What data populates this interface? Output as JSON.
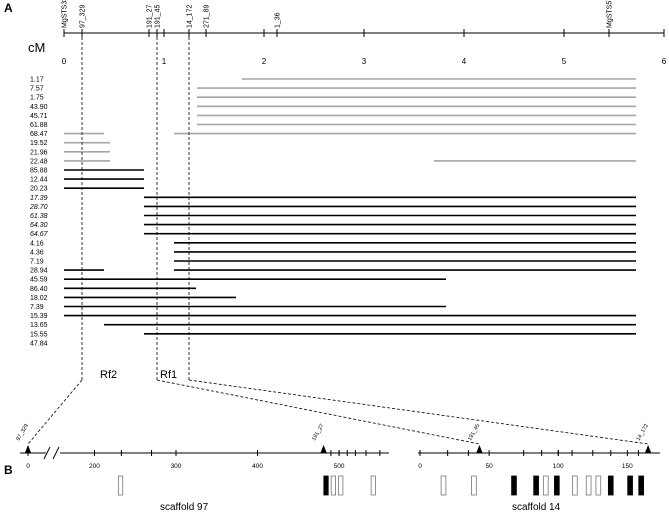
{
  "panel_a_label": "A",
  "panel_b_label": "B",
  "cm_title": "cM",
  "cm_scale": {
    "min": 0,
    "max": 6,
    "ticks": [
      "0",
      "1",
      "2",
      "3",
      "4",
      "5",
      "6"
    ]
  },
  "markers": [
    {
      "name": "MgSTS331",
      "cm": 0.0
    },
    {
      "name": "97_329",
      "cm": 0.18
    },
    {
      "name": "191_27",
      "cm": 0.85
    },
    {
      "name": "191_45",
      "cm": 0.93
    },
    {
      "name": "14_172",
      "cm": 1.25
    },
    {
      "name": "271_89",
      "cm": 1.42
    },
    {
      "name": "1_36",
      "cm": 2.13
    },
    {
      "name": "MgSTS574",
      "cm": 5.45
    }
  ],
  "recombinants": [
    {
      "label": "1.17",
      "italic": false,
      "segments": [
        {
          "from": 1.78,
          "to": 5.72,
          "gray": true
        }
      ]
    },
    {
      "label": "7.57",
      "italic": false,
      "segments": [
        {
          "from": 1.33,
          "to": 5.72,
          "gray": true
        }
      ]
    },
    {
      "label": "1.75",
      "italic": false,
      "segments": [
        {
          "from": 1.33,
          "to": 5.72,
          "gray": true
        }
      ]
    },
    {
      "label": "43.90",
      "italic": false,
      "segments": [
        {
          "from": 1.33,
          "to": 5.72,
          "gray": true
        }
      ]
    },
    {
      "label": "45.71",
      "italic": false,
      "segments": [
        {
          "from": 1.33,
          "to": 5.72,
          "gray": true
        }
      ]
    },
    {
      "label": "61.88",
      "italic": false,
      "segments": [
        {
          "from": 1.33,
          "to": 5.72,
          "gray": true
        }
      ]
    },
    {
      "label": "68.47",
      "italic": false,
      "segments": [
        {
          "from": 0.0,
          "to": 0.4,
          "gray": true
        },
        {
          "from": 1.1,
          "to": 5.72,
          "gray": true
        }
      ]
    },
    {
      "label": "19.52",
      "italic": false,
      "segments": [
        {
          "from": 0.0,
          "to": 0.46,
          "gray": true
        }
      ]
    },
    {
      "label": "21.96",
      "italic": false,
      "segments": [
        {
          "from": 0.0,
          "to": 0.46,
          "gray": true
        }
      ]
    },
    {
      "label": "22.48",
      "italic": false,
      "segments": [
        {
          "from": 0.0,
          "to": 0.46,
          "gray": true
        },
        {
          "from": 3.7,
          "to": 5.72,
          "gray": true
        }
      ]
    },
    {
      "label": "85.88",
      "italic": false,
      "segments": [
        {
          "from": 0.0,
          "to": 0.8,
          "gray": false
        }
      ]
    },
    {
      "label": "12.44",
      "italic": false,
      "segments": [
        {
          "from": 0.0,
          "to": 0.8,
          "gray": false
        }
      ]
    },
    {
      "label": "20.23",
      "italic": false,
      "segments": [
        {
          "from": 0.0,
          "to": 0.8,
          "gray": false
        }
      ]
    },
    {
      "label": "17.39",
      "italic": true,
      "segments": [
        {
          "from": 0.8,
          "to": 5.72,
          "gray": false
        }
      ]
    },
    {
      "label": "28.70",
      "italic": true,
      "segments": [
        {
          "from": 0.8,
          "to": 5.72,
          "gray": false
        }
      ]
    },
    {
      "label": "61.38",
      "italic": true,
      "segments": [
        {
          "from": 0.8,
          "to": 5.72,
          "gray": false
        }
      ]
    },
    {
      "label": "64.30",
      "italic": true,
      "segments": [
        {
          "from": 0.8,
          "to": 5.72,
          "gray": false
        }
      ]
    },
    {
      "label": "64.67",
      "italic": true,
      "segments": [
        {
          "from": 0.8,
          "to": 5.72,
          "gray": false
        }
      ]
    },
    {
      "label": "4.16",
      "italic": false,
      "segments": [
        {
          "from": 1.1,
          "to": 5.72,
          "gray": false
        }
      ]
    },
    {
      "label": "4.36",
      "italic": false,
      "segments": [
        {
          "from": 1.1,
          "to": 5.72,
          "gray": false
        }
      ]
    },
    {
      "label": "7.19",
      "italic": false,
      "segments": [
        {
          "from": 1.1,
          "to": 5.72,
          "gray": false
        }
      ]
    },
    {
      "label": "28.94",
      "italic": false,
      "segments": [
        {
          "from": 0.0,
          "to": 0.4,
          "gray": false
        },
        {
          "from": 1.1,
          "to": 5.72,
          "gray": false
        }
      ]
    },
    {
      "label": "45.59",
      "italic": false,
      "segments": [
        {
          "from": 0.0,
          "to": 1.1,
          "gray": false
        },
        {
          "from": 1.1,
          "to": 3.82,
          "gray": false
        }
      ]
    },
    {
      "label": "86.40",
      "italic": false,
      "segments": [
        {
          "from": 0.0,
          "to": 1.32,
          "gray": false
        }
      ]
    },
    {
      "label": "18.02",
      "italic": false,
      "segments": [
        {
          "from": 0.0,
          "to": 1.72,
          "gray": false
        }
      ]
    },
    {
      "label": "7.39",
      "italic": false,
      "segments": [
        {
          "from": 0.0,
          "to": 3.82,
          "gray": false
        }
      ]
    },
    {
      "label": "15.39",
      "italic": false,
      "segments": [
        {
          "from": 0.0,
          "to": 5.72,
          "gray": false
        }
      ]
    },
    {
      "label": "13.65",
      "italic": false,
      "segments": [
        {
          "from": 0.4,
          "to": 5.72,
          "gray": false
        }
      ]
    },
    {
      "label": "15.55",
      "italic": false,
      "segments": [
        {
          "from": 0.8,
          "to": 5.72,
          "gray": false
        }
      ]
    },
    {
      "label": "47.84",
      "italic": false,
      "segments": []
    }
  ],
  "rf_labels": [
    {
      "text": "Rf2",
      "cm": 0.48
    },
    {
      "text": "Rf1",
      "cm": 1.08
    }
  ],
  "scaffold97": {
    "name": "scaffold 97",
    "tick_labels": [
      {
        "text": "0",
        "kb": 0
      },
      {
        "text": "200",
        "kb": 200
      },
      {
        "text": "300",
        "kb": 300
      },
      {
        "text": "400",
        "kb": 400
      },
      {
        "text": "500",
        "kb": 500
      }
    ],
    "markers": [
      {
        "name": "97_329",
        "kb": 0
      },
      {
        "name": "191_27",
        "kb": 481
      }
    ],
    "minor_ticks": [
      233,
      270,
      490,
      500,
      510,
      520,
      533,
      550
    ],
    "genes": [
      {
        "kb": 232,
        "filled": false
      },
      {
        "kb": 484,
        "filled": true
      },
      {
        "kb": 493,
        "filled": false
      },
      {
        "kb": 502,
        "filled": false
      },
      {
        "kb": 542,
        "filled": false
      }
    ]
  },
  "scaffold14": {
    "name": "scaffold 14",
    "tick_labels": [
      {
        "text": "0",
        "kb": 0
      },
      {
        "text": "50",
        "kb": 50
      },
      {
        "text": "100",
        "kb": 100
      },
      {
        "text": "150",
        "kb": 150
      }
    ],
    "markers": [
      {
        "name": "191_45",
        "kb": 43
      },
      {
        "name": "14_172",
        "kb": 165
      }
    ],
    "minor_ticks": [
      20,
      35,
      75,
      88,
      100,
      110,
      125,
      138,
      158
    ],
    "genes": [
      {
        "kb": 17,
        "filled": false
      },
      {
        "kb": 39,
        "filled": false
      },
      {
        "kb": 68,
        "filled": true
      },
      {
        "kb": 84,
        "filled": true
      },
      {
        "kb": 91,
        "filled": false
      },
      {
        "kb": 99,
        "filled": true
      },
      {
        "kb": 112,
        "filled": false
      },
      {
        "kb": 122,
        "filled": false
      },
      {
        "kb": 129,
        "filled": false
      },
      {
        "kb": 138,
        "filled": true
      },
      {
        "kb": 152,
        "filled": true
      },
      {
        "kb": 160,
        "filled": true
      }
    ]
  }
}
